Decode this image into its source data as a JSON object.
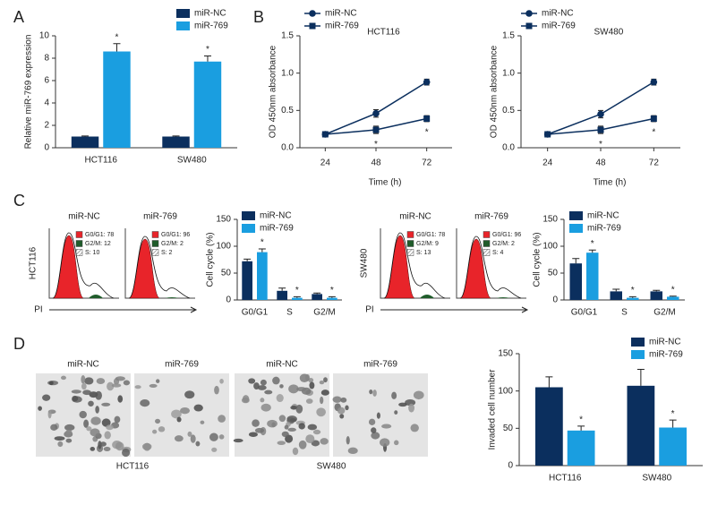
{
  "panel_labels": [
    "A",
    "B",
    "C",
    "D"
  ],
  "chart_data": [
    {
      "type": "bar",
      "categories": [
        "HCT116",
        "SW480"
      ],
      "y_label": "Relative miR-769 expression",
      "series": [
        {
          "name": "miR-NC",
          "color": "#0b2f5e",
          "values": [
            1,
            1
          ],
          "errors": [
            0.05,
            0.05
          ],
          "significance": [
            null,
            null
          ]
        },
        {
          "name": "miR-769",
          "color": "#1a9ee0",
          "values": [
            8.6,
            7.7
          ],
          "errors": [
            0.7,
            0.5
          ],
          "significance": [
            "*",
            "*"
          ]
        }
      ],
      "ylim": [
        0,
        10
      ],
      "yticks": [
        0,
        2,
        4,
        6,
        8,
        10
      ]
    },
    {
      "type": "line",
      "title": "HCT116",
      "x": [
        24,
        48,
        72
      ],
      "x_label": "Time (h)",
      "y_label": "OD 450nm absorbance",
      "series": [
        {
          "name": "miR-NC",
          "color": "#0b2f5e",
          "marker": "circle",
          "values": [
            0.18,
            0.46,
            0.88
          ],
          "errors": [
            0.03,
            0.05,
            0.04
          ],
          "significance": [
            null,
            null,
            null
          ]
        },
        {
          "name": "miR-769",
          "color": "#0b2f5e",
          "marker": "square",
          "values": [
            0.18,
            0.24,
            0.39
          ],
          "errors": [
            0.03,
            0.05,
            0.04
          ],
          "significance": [
            null,
            "*",
            "*"
          ]
        }
      ],
      "xlim": [
        12,
        84
      ],
      "xticks": [
        24,
        48,
        72
      ],
      "ylim": [
        0,
        1.5
      ],
      "yticks": [
        {
          "value": 0,
          "label": "0.0"
        },
        {
          "value": 0.5,
          "label": "0.5"
        },
        {
          "value": 1,
          "label": "1.0"
        },
        {
          "value": 1.5,
          "label": "1.5"
        }
      ]
    },
    {
      "type": "line",
      "title": "SW480",
      "x": [
        24,
        48,
        72
      ],
      "x_label": "Time (h)",
      "y_label": "OD 450nm absorbance",
      "series": [
        {
          "name": "miR-NC",
          "color": "#0b2f5e",
          "marker": "circle",
          "values": [
            0.18,
            0.45,
            0.88
          ],
          "errors": [
            0.03,
            0.05,
            0.04
          ],
          "significance": [
            null,
            null,
            null
          ]
        },
        {
          "name": "miR-769",
          "color": "#0b2f5e",
          "marker": "square",
          "values": [
            0.18,
            0.24,
            0.39
          ],
          "errors": [
            0.03,
            0.05,
            0.04
          ],
          "significance": [
            null,
            "*",
            "*"
          ]
        }
      ],
      "xlim": [
        12,
        84
      ],
      "xticks": [
        24,
        48,
        72
      ],
      "ylim": [
        0,
        1.5
      ],
      "yticks": [
        {
          "value": 0,
          "label": "0.0"
        },
        {
          "value": 0.5,
          "label": "0.5"
        },
        {
          "value": 1,
          "label": "1.0"
        },
        {
          "value": 1.5,
          "label": "1.5"
        }
      ]
    },
    {
      "type": "bar",
      "categories": [
        "G0/G1",
        "S",
        "G2/M"
      ],
      "y_label": "Cell cycle (%)",
      "series": [
        {
          "name": "miR-NC",
          "color": "#0b2f5e",
          "values": [
            72,
            17,
            11
          ],
          "errors": [
            4,
            5,
            2
          ],
          "significance": [
            null,
            null,
            null
          ]
        },
        {
          "name": "miR-769",
          "color": "#1a9ee0",
          "values": [
            89,
            4,
            4
          ],
          "errors": [
            6,
            2,
            2
          ],
          "significance": [
            "*",
            "*",
            "*"
          ]
        }
      ],
      "ylim": [
        0,
        150
      ],
      "yticks": [
        0,
        50,
        100,
        150
      ]
    },
    {
      "type": "bar",
      "categories": [
        "G0/G1",
        "S",
        "G2/M"
      ],
      "y_label": "Cell cycle (%)",
      "series": [
        {
          "name": "miR-NC",
          "color": "#0b2f5e",
          "values": [
            68,
            16,
            16
          ],
          "errors": [
            9,
            4,
            2
          ],
          "significance": [
            null,
            null,
            null
          ]
        },
        {
          "name": "miR-769",
          "color": "#1a9ee0",
          "values": [
            88,
            4,
            6
          ],
          "errors": [
            5,
            2,
            1
          ],
          "significance": [
            "*",
            "*",
            "*"
          ]
        }
      ],
      "ylim": [
        0,
        150
      ],
      "yticks": [
        0,
        50,
        100,
        150
      ]
    },
    {
      "type": "bar",
      "categories": [
        "HCT116",
        "SW480"
      ],
      "y_label": "Invaded cell number",
      "series": [
        {
          "name": "miR-NC",
          "color": "#0b2f5e",
          "values": [
            105,
            107
          ],
          "errors": [
            14,
            22
          ],
          "significance": [
            null,
            null
          ]
        },
        {
          "name": "miR-769",
          "color": "#1a9ee0",
          "values": [
            47,
            51
          ],
          "errors": [
            6,
            10
          ],
          "significance": [
            "*",
            "*"
          ]
        }
      ],
      "ylim": [
        0,
        150
      ],
      "yticks": [
        0,
        50,
        100,
        150
      ]
    }
  ],
  "flow_cytometry": [
    {
      "cell_line": "HCT116",
      "axis_label": "PI",
      "samples": [
        {
          "name": "miR-NC",
          "legend": [
            "G0/G1: 78",
            "G2/M: 12",
            "S: 10"
          ]
        },
        {
          "name": "miR-769",
          "legend": [
            "G0/G1: 96",
            "G2/M: 2",
            "S: 2"
          ]
        }
      ]
    },
    {
      "cell_line": "SW480",
      "axis_label": "PI",
      "samples": [
        {
          "name": "miR-NC",
          "legend": [
            "G0/G1: 78",
            "G2/M: 9",
            "S: 13"
          ]
        },
        {
          "name": "miR-769",
          "legend": [
            "G0/G1: 96",
            "G2/M: 2",
            "S: 4"
          ]
        }
      ]
    }
  ],
  "invasion_images": [
    {
      "cell_line": "HCT116",
      "samples": [
        "miR-NC",
        "miR-769"
      ]
    },
    {
      "cell_line": "SW480",
      "samples": [
        "miR-NC",
        "miR-769"
      ]
    }
  ]
}
